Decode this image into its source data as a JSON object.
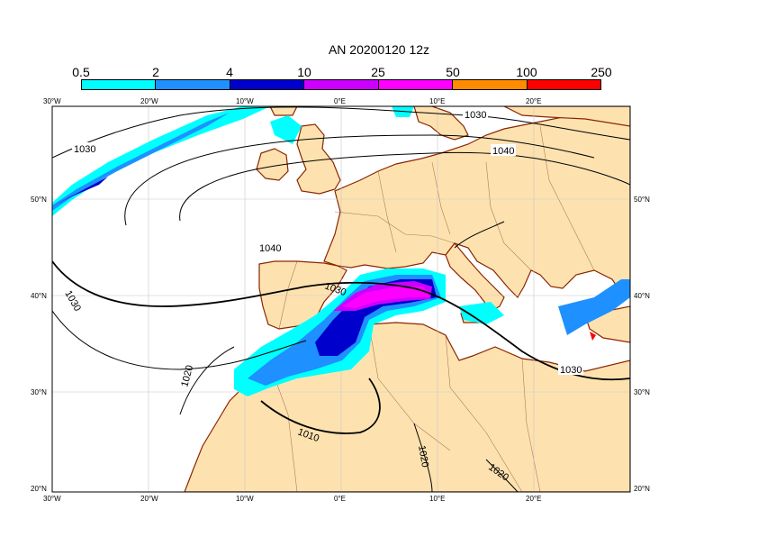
{
  "title": "AN  20200120 12z",
  "colorbar": {
    "labels": [
      "0.5",
      "2",
      "4",
      "10",
      "25",
      "50",
      "100",
      "250"
    ],
    "colors": [
      "#00ffff",
      "#1e90ff",
      "#0000cd",
      "#cc00ff",
      "#ff00ff",
      "#ff8c00",
      "#ff0000"
    ]
  },
  "axes": {
    "top_lon": [
      "30°W",
      "20°W",
      "10°W",
      "0°E",
      "10°E",
      "20°E"
    ],
    "bottom_lon": [
      "30°W",
      "20°W",
      "10°W",
      "0°E",
      "10°E",
      "20°E"
    ],
    "left_lat": [
      "50°N",
      "40°N",
      "30°N",
      "20°N"
    ],
    "right_lat": [
      "50°N",
      "40°N",
      "30°N",
      "20°N"
    ]
  },
  "isobars": [
    "1030",
    "1040",
    "1030",
    "1040",
    "1030",
    "1020",
    "1010",
    "1020",
    "1020",
    "1030"
  ],
  "colors": {
    "land": "#fde2b0",
    "coast": "#8b2500",
    "sea": "#ffffff"
  }
}
